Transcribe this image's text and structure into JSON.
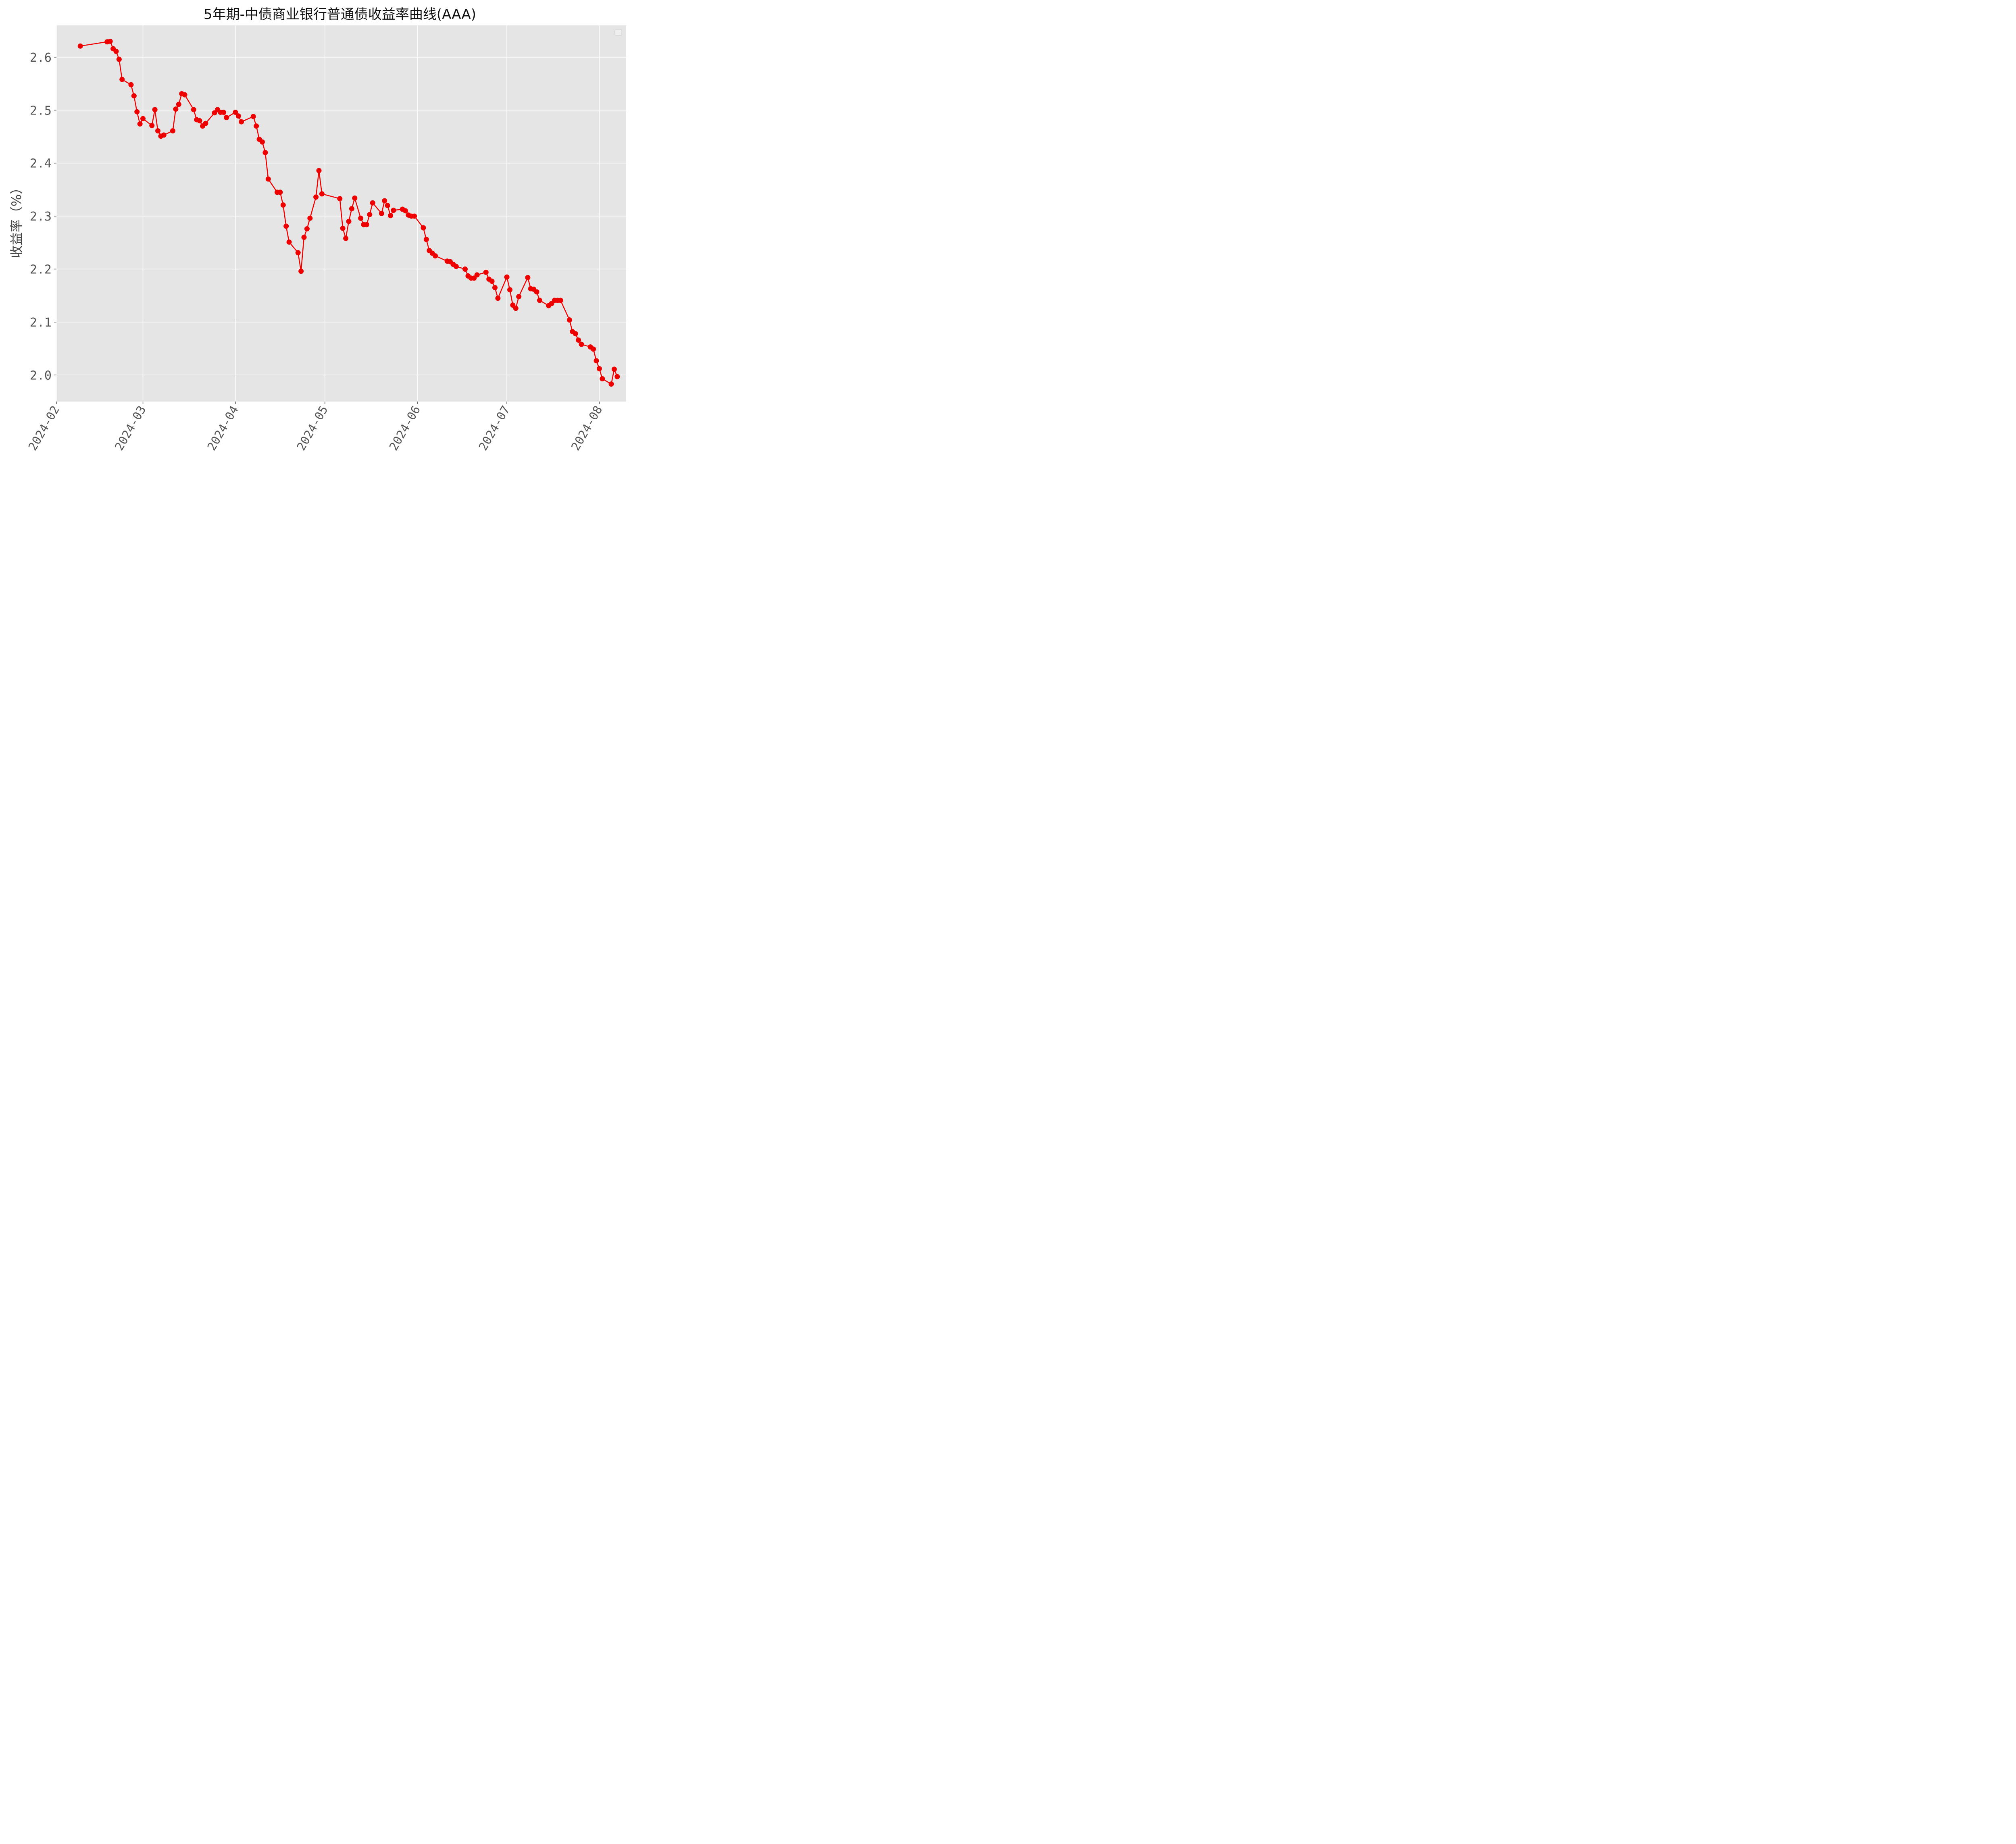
{
  "chart_data": {
    "type": "line",
    "title": "5年期-中债商业银行普通债收益率曲线(AAA)",
    "xlabel": "",
    "ylabel": "收益率（%）",
    "xlim": [
      "2024-02-01",
      "2024-08-10"
    ],
    "ylim": [
      1.95,
      2.66
    ],
    "grid": true,
    "legend": "top-right (empty)",
    "colors": {
      "line": "#ee0000",
      "marker": "#ee0000",
      "plot_bg": "#e5e5e5",
      "grid": "#ffffff"
    },
    "x_ticks": [
      "2024-02",
      "2024-03",
      "2024-04",
      "2024-05",
      "2024-06",
      "2024-07",
      "2024-08"
    ],
    "y_ticks": [
      "2.0",
      "2.1",
      "2.2",
      "2.3",
      "2.4",
      "2.5",
      "2.6"
    ],
    "series": [
      {
        "x": [
          "2024-02-09",
          "2024-02-18",
          "2024-02-19",
          "2024-02-20",
          "2024-02-21",
          "2024-02-22",
          "2024-02-23",
          "2024-02-26",
          "2024-02-27",
          "2024-02-28",
          "2024-02-29",
          "2024-03-01",
          "2024-03-04",
          "2024-03-05",
          "2024-03-06",
          "2024-03-07",
          "2024-03-08",
          "2024-03-11",
          "2024-03-12",
          "2024-03-13",
          "2024-03-14",
          "2024-03-15",
          "2024-03-18",
          "2024-03-19",
          "2024-03-20",
          "2024-03-21",
          "2024-03-22",
          "2024-03-25",
          "2024-03-26",
          "2024-03-27",
          "2024-03-28",
          "2024-03-29",
          "2024-04-01",
          "2024-04-02",
          "2024-04-03",
          "2024-04-07",
          "2024-04-08",
          "2024-04-09",
          "2024-04-10",
          "2024-04-11",
          "2024-04-12",
          "2024-04-15",
          "2024-04-16",
          "2024-04-17",
          "2024-04-18",
          "2024-04-19",
          "2024-04-22",
          "2024-04-23",
          "2024-04-24",
          "2024-04-25",
          "2024-04-26",
          "2024-04-28",
          "2024-04-29",
          "2024-04-30",
          "2024-05-06",
          "2024-05-07",
          "2024-05-08",
          "2024-05-09",
          "2024-05-10",
          "2024-05-11",
          "2024-05-13",
          "2024-05-14",
          "2024-05-15",
          "2024-05-16",
          "2024-05-17",
          "2024-05-20",
          "2024-05-21",
          "2024-05-22",
          "2024-05-23",
          "2024-05-24",
          "2024-05-27",
          "2024-05-28",
          "2024-05-29",
          "2024-05-30",
          "2024-05-31",
          "2024-06-03",
          "2024-06-04",
          "2024-06-05",
          "2024-06-06",
          "2024-06-07",
          "2024-06-11",
          "2024-06-12",
          "2024-06-13",
          "2024-06-14",
          "2024-06-17",
          "2024-06-18",
          "2024-06-19",
          "2024-06-20",
          "2024-06-21",
          "2024-06-24",
          "2024-06-25",
          "2024-06-26",
          "2024-06-27",
          "2024-06-28",
          "2024-07-01",
          "2024-07-02",
          "2024-07-03",
          "2024-07-04",
          "2024-07-05",
          "2024-07-08",
          "2024-07-09",
          "2024-07-10",
          "2024-07-11",
          "2024-07-12",
          "2024-07-15",
          "2024-07-16",
          "2024-07-17",
          "2024-07-18",
          "2024-07-19",
          "2024-07-22",
          "2024-07-23",
          "2024-07-24",
          "2024-07-25",
          "2024-07-26",
          "2024-07-29",
          "2024-07-30",
          "2024-07-31",
          "2024-08-01",
          "2024-08-02",
          "2024-08-05",
          "2024-08-06",
          "2024-08-07"
        ],
        "y": [
          2.621,
          2.629,
          2.63,
          2.616,
          2.611,
          2.596,
          2.558,
          2.548,
          2.527,
          2.497,
          2.474,
          2.484,
          2.471,
          2.501,
          2.461,
          2.451,
          2.453,
          2.461,
          2.502,
          2.511,
          2.531,
          2.529,
          2.501,
          2.482,
          2.48,
          2.47,
          2.475,
          2.495,
          2.501,
          2.496,
          2.496,
          2.486,
          2.496,
          2.489,
          2.478,
          2.488,
          2.47,
          2.445,
          2.44,
          2.42,
          2.37,
          2.345,
          2.345,
          2.321,
          2.281,
          2.251,
          2.231,
          2.196,
          2.26,
          2.276,
          2.296,
          2.336,
          2.386,
          2.342,
          2.333,
          2.277,
          2.258,
          2.29,
          2.314,
          2.334,
          2.296,
          2.284,
          2.284,
          2.303,
          2.325,
          2.305,
          2.329,
          2.32,
          2.301,
          2.311,
          2.313,
          2.31,
          2.302,
          2.3,
          2.3,
          2.278,
          2.256,
          2.235,
          2.23,
          2.225,
          2.215,
          2.214,
          2.209,
          2.205,
          2.2,
          2.187,
          2.183,
          2.183,
          2.189,
          2.194,
          2.181,
          2.177,
          2.165,
          2.145,
          2.185,
          2.161,
          2.132,
          2.126,
          2.148,
          2.184,
          2.163,
          2.162,
          2.157,
          2.141,
          2.131,
          2.135,
          2.141,
          2.141,
          2.141,
          2.104,
          2.082,
          2.078,
          2.066,
          2.058,
          2.053,
          2.049,
          2.027,
          2.012,
          1.993,
          1.983,
          2.011,
          1.997
        ]
      }
    ]
  }
}
